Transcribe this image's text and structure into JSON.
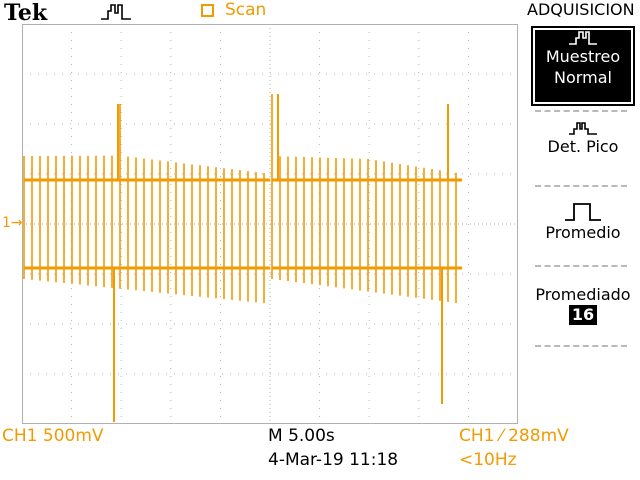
{
  "header": {
    "brand": "Tek",
    "scan_label": "Scan",
    "menu_title": "ADQUISICION"
  },
  "menu": {
    "muestreo": "Muestreo",
    "normal": "Normal",
    "det_pico": "Det. Pico",
    "promedio": "Promedio",
    "promediado": "Promediado",
    "promediado_value": "16"
  },
  "status": {
    "ch1_scale": "CH1  500mV",
    "timebase": "M 5.00s",
    "datetime": "4-Mar-19 11:18",
    "trigger": "CH1 ⁄ 288mV",
    "frequency": "<10Hz"
  },
  "markers": {
    "ch1": "1→"
  },
  "colors": {
    "trace": "#F29A00",
    "grid": "#b0b0b0",
    "text": "#000000"
  },
  "icons": [
    "trigger-pulse-icon",
    "sample-mode-icon",
    "peak-detect-icon",
    "average-mode-icon"
  ]
}
